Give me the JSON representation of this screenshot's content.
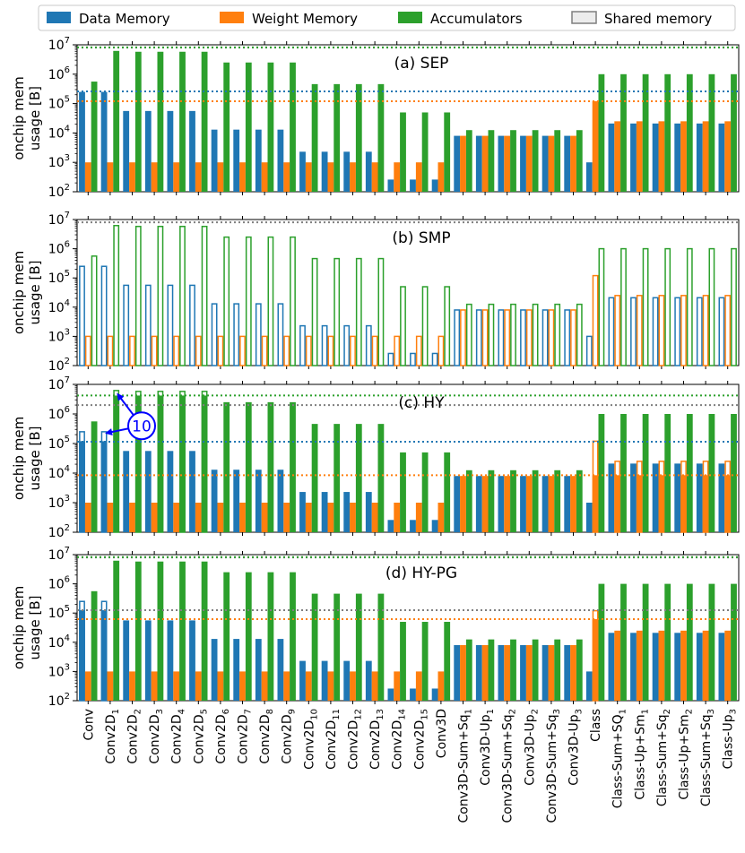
{
  "chart_data": {
    "type": "bar",
    "scale": "log10",
    "ylim": [
      100,
      10000000
    ],
    "ylabel_line1": "onchip mem",
    "ylabel_line2": "usage [B]",
    "ytick_base": "10",
    "ytick_exponents": [
      "2",
      "3",
      "4",
      "5",
      "6",
      "7"
    ],
    "categories": [
      {
        "base": "Conv",
        "sub": ""
      },
      {
        "base": "Conv2D",
        "sub": "1"
      },
      {
        "base": "Conv2D",
        "sub": "2"
      },
      {
        "base": "Conv2D",
        "sub": "3"
      },
      {
        "base": "Conv2D",
        "sub": "4"
      },
      {
        "base": "Conv2D",
        "sub": "5"
      },
      {
        "base": "Conv2D",
        "sub": "6"
      },
      {
        "base": "Conv2D",
        "sub": "7"
      },
      {
        "base": "Conv2D",
        "sub": "8"
      },
      {
        "base": "Conv2D",
        "sub": "9"
      },
      {
        "base": "Conv2D",
        "sub": "10"
      },
      {
        "base": "Conv2D",
        "sub": "11"
      },
      {
        "base": "Conv2D",
        "sub": "12"
      },
      {
        "base": "Conv2D",
        "sub": "13"
      },
      {
        "base": "Conv2D",
        "sub": "14"
      },
      {
        "base": "Conv2D",
        "sub": "15"
      },
      {
        "base": "Conv3D",
        "sub": ""
      },
      {
        "base": "Conv3D-Sum+Sq",
        "sub": "1"
      },
      {
        "base": "Conv3D-Up",
        "sub": "1"
      },
      {
        "base": "Conv3D-Sum+Sq",
        "sub": "2"
      },
      {
        "base": "Conv3D-Up",
        "sub": "2"
      },
      {
        "base": "Conv3D-Sum+Sq",
        "sub": "3"
      },
      {
        "base": "Conv3D-Up",
        "sub": "3"
      },
      {
        "base": "Class",
        "sub": ""
      },
      {
        "base": "Class-Sum+SQ",
        "sub": "1"
      },
      {
        "base": "Class-Up+Sm",
        "sub": "1"
      },
      {
        "base": "Class-Sum+Sq",
        "sub": "2"
      },
      {
        "base": "Class-Up+Sm",
        "sub": "2"
      },
      {
        "base": "Class-Sum+Sq",
        "sub": "3"
      },
      {
        "base": "Class-Up",
        "sub": "3"
      }
    ],
    "legend": [
      {
        "key": "data",
        "label": "Data Memory",
        "color": "#1f77b4",
        "style": "filled"
      },
      {
        "key": "weight",
        "label": "Weight Memory",
        "color": "#ff7f0e",
        "style": "filled"
      },
      {
        "key": "acc",
        "label": "Accumulators",
        "color": "#2ca02c",
        "style": "filled"
      },
      {
        "key": "shared",
        "label": "Shared memory",
        "color": "#ececec",
        "style": "outline"
      }
    ],
    "colors": {
      "data": "#1f77b4",
      "weight": "#ff7f0e",
      "acc": "#2ca02c",
      "shared": "#7f7f7f"
    },
    "series_values": {
      "data": [
        250000,
        250000,
        56000,
        56000,
        56000,
        56000,
        13000,
        13000,
        13000,
        13000,
        2300,
        2300,
        2300,
        2300,
        260,
        260,
        260,
        8000,
        8000,
        8000,
        8000,
        8000,
        8000,
        1000,
        21000,
        21000,
        21000,
        21000,
        21000,
        21000
      ],
      "weight": [
        1000,
        1000,
        1000,
        1000,
        1000,
        1000,
        1000,
        1000,
        1000,
        1000,
        1000,
        1000,
        1000,
        1000,
        1000,
        1000,
        1000,
        8000,
        8000,
        8000,
        8000,
        8000,
        8000,
        120000,
        25000,
        25000,
        25000,
        25000,
        25000,
        25000
      ],
      "acc": [
        560000,
        6200000,
        5800000,
        5800000,
        5800000,
        5800000,
        2500000,
        2500000,
        2500000,
        2500000,
        460000,
        460000,
        460000,
        460000,
        50000,
        50000,
        50000,
        12500,
        12500,
        12500,
        12500,
        12500,
        12500,
        1000000,
        1000000,
        1000000,
        1000000,
        1000000,
        1000000,
        1000000
      ]
    },
    "panels": [
      {
        "title": "(a) SEP",
        "fill": {
          "data": "filled",
          "weight": "filled",
          "acc": "filled"
        },
        "hlines": [
          {
            "series": "shared",
            "value": 8000000
          },
          {
            "series": "acc",
            "value": 8200000
          },
          {
            "series": "data",
            "value": 260000
          },
          {
            "series": "weight",
            "value": 120000
          }
        ],
        "overlays": []
      },
      {
        "title": "(b) SMP",
        "fill": {
          "data": "outline",
          "weight": "outline",
          "acc": "outline"
        },
        "hlines": [
          {
            "series": "shared",
            "value": 8000000
          }
        ],
        "overlays": []
      },
      {
        "title": "(c) HY",
        "fill": {
          "data": "filled",
          "weight": "filled",
          "acc": "filled"
        },
        "hlines": [
          {
            "series": "acc",
            "value": 4200000
          },
          {
            "series": "shared",
            "value": 2000000
          },
          {
            "series": "data",
            "value": 115000
          },
          {
            "series": "weight",
            "value": 8500
          }
        ],
        "overlays": [
          {
            "series": "data",
            "index": 0,
            "filled": 120000,
            "outline": 250000
          },
          {
            "series": "data",
            "index": 1,
            "filled": 120000,
            "outline": 250000
          },
          {
            "series": "acc",
            "index": 1,
            "filled": 4200000,
            "outline": 6200000
          },
          {
            "series": "acc",
            "index": 2,
            "filled": 4200000,
            "outline": 5800000
          },
          {
            "series": "acc",
            "index": 3,
            "filled": 4200000,
            "outline": 5800000
          },
          {
            "series": "acc",
            "index": 4,
            "filled": 4200000,
            "outline": 5800000
          },
          {
            "series": "acc",
            "index": 5,
            "filled": 4200000,
            "outline": 5800000
          },
          {
            "series": "weight",
            "index": 23,
            "filled": 8500,
            "outline": 120000
          },
          {
            "series": "weight",
            "index": 24,
            "filled": 8500,
            "outline": 25000
          },
          {
            "series": "weight",
            "index": 25,
            "filled": 8500,
            "outline": 25000
          },
          {
            "series": "weight",
            "index": 26,
            "filled": 8500,
            "outline": 25000
          },
          {
            "series": "weight",
            "index": 27,
            "filled": 8500,
            "outline": 25000
          },
          {
            "series": "weight",
            "index": 28,
            "filled": 8500,
            "outline": 25000
          },
          {
            "series": "weight",
            "index": 29,
            "filled": 8500,
            "outline": 25000
          }
        ],
        "annotation": {
          "label": "10",
          "color": "#0000ff",
          "arrow_targets": [
            {
              "series": "acc",
              "index": 1,
              "value": 6200000
            },
            {
              "series": "data",
              "index": 1,
              "value": 250000
            }
          ]
        }
      },
      {
        "title": "(d) HY-PG",
        "fill": {
          "data": "filled",
          "weight": "filled",
          "acc": "filled"
        },
        "hlines": [
          {
            "series": "shared",
            "value": 8000000
          },
          {
            "series": "acc",
            "value": 8200000
          },
          {
            "series": "shared",
            "value": 125000
          },
          {
            "series": "weight",
            "value": 62000
          }
        ],
        "overlays": [
          {
            "series": "data",
            "index": 0,
            "filled": 125000,
            "outline": 250000
          },
          {
            "series": "data",
            "index": 1,
            "filled": 125000,
            "outline": 250000
          },
          {
            "series": "weight",
            "index": 23,
            "filled": 62000,
            "outline": 120000
          }
        ]
      }
    ]
  }
}
